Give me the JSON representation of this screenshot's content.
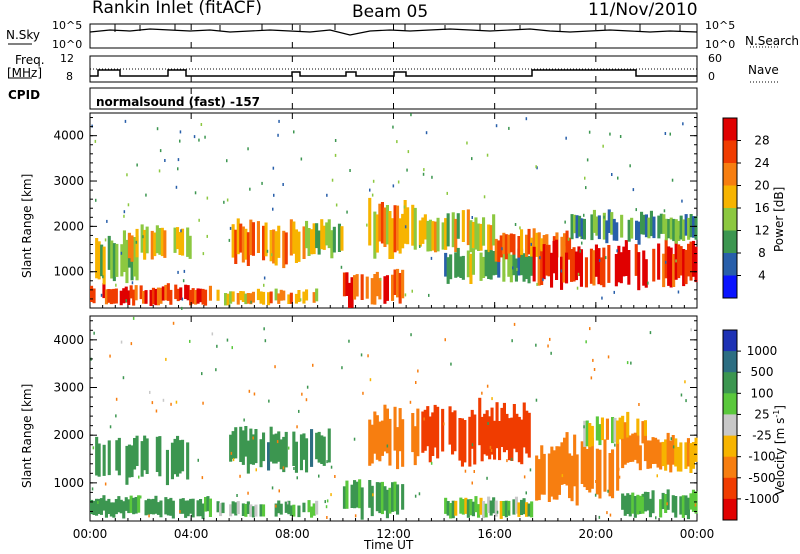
{
  "header": {
    "station": "Rankin Inlet (fitACF)",
    "beam": "Beam 05",
    "date": "11/Nov/2010"
  },
  "top_panels": {
    "nsky_label": "N.Sky",
    "nsky_ticks": [
      "10^5",
      "10^0"
    ],
    "nsearch_label": "N.Search",
    "nsearch_ticks": [
      "10^5",
      "10^0"
    ],
    "freq_label_line1": "Freq.",
    "freq_label_line2": "[MHz]",
    "freq_ticks": [
      "12",
      "8"
    ],
    "nave_label": "Nave",
    "nave_ticks": [
      "60",
      "0"
    ],
    "cpid_label": "CPID",
    "cpid_value": "normalsound (fast) -157"
  },
  "colorbars": {
    "power": {
      "label": "Power [dB]",
      "ticks": [
        "28",
        "24",
        "20",
        "16",
        "12",
        "8",
        "4"
      ],
      "colors": [
        "#e00000",
        "#f03c00",
        "#f77e10",
        "#f7b400",
        "#8cc840",
        "#3c9650",
        "#285faa",
        "#0a14ff"
      ]
    },
    "velocity": {
      "label": "Velocity [m s",
      "label_sup": "-1",
      "label_end": "]",
      "ticks": [
        "1000",
        "500",
        "100",
        "25",
        "-25",
        "-100",
        "-500",
        "-1000"
      ],
      "colors": [
        "#1e32b4",
        "#2d6e82",
        "#3c9650",
        "#5ac83c",
        "#c8c8c8",
        "#f7b400",
        "#f77e10",
        "#f03c00",
        "#e00000"
      ]
    }
  },
  "chart_data": [
    {
      "type": "heatmap",
      "title": "Power",
      "ylabel": "Slant Range [km]",
      "ylim": [
        200,
        4500
      ],
      "yticks": [
        "4000",
        "3000",
        "2000",
        "1000"
      ],
      "xlim": [
        "00:00",
        "24:00"
      ],
      "bands": [
        {
          "t0": 0.0,
          "t1": 4.8,
          "r0": 300,
          "r1": 700,
          "value": 26
        },
        {
          "t0": 0.0,
          "t1": 2.0,
          "r0": 800,
          "r1": 1800,
          "value": 14
        },
        {
          "t0": 1.5,
          "t1": 4.0,
          "r0": 1300,
          "r1": 2000,
          "value": 18
        },
        {
          "t0": 5.0,
          "t1": 9.0,
          "r0": 300,
          "r1": 600,
          "value": 20
        },
        {
          "t0": 5.5,
          "t1": 8.5,
          "r0": 1200,
          "r1": 2100,
          "value": 22
        },
        {
          "t0": 8.5,
          "t1": 10.0,
          "r0": 1400,
          "r1": 2100,
          "value": 14
        },
        {
          "t0": 10.0,
          "t1": 12.4,
          "r0": 300,
          "r1": 1000,
          "value": 26
        },
        {
          "t0": 11.0,
          "t1": 13.0,
          "r0": 1400,
          "r1": 2500,
          "value": 20
        },
        {
          "t0": 13.0,
          "t1": 16.0,
          "r0": 1500,
          "r1": 2300,
          "value": 16
        },
        {
          "t0": 14.0,
          "t1": 17.5,
          "r0": 800,
          "r1": 1500,
          "value": 12
        },
        {
          "t0": 16.0,
          "t1": 19.0,
          "r0": 1300,
          "r1": 1900,
          "value": 24
        },
        {
          "t0": 17.5,
          "t1": 24.0,
          "r0": 700,
          "r1": 1600,
          "value": 28
        },
        {
          "t0": 19.0,
          "t1": 24.0,
          "r0": 1700,
          "r1": 2300,
          "value": 10
        }
      ]
    },
    {
      "type": "heatmap",
      "title": "Velocity",
      "ylabel": "Slant Range [km]",
      "ylim": [
        200,
        4500
      ],
      "yticks": [
        "4000",
        "3000",
        "2000",
        "1000"
      ],
      "xlim": [
        "00:00",
        "24:00"
      ],
      "bands": [
        {
          "t0": 0.0,
          "t1": 4.8,
          "r0": 300,
          "r1": 700,
          "value": 200
        },
        {
          "t0": 0.0,
          "t1": 4.0,
          "r0": 1100,
          "r1": 2000,
          "value": 300
        },
        {
          "t0": 5.0,
          "t1": 9.0,
          "r0": 300,
          "r1": 600,
          "value": 100
        },
        {
          "t0": 5.5,
          "t1": 9.5,
          "r0": 1300,
          "r1": 2100,
          "value": 400
        },
        {
          "t0": 10.0,
          "t1": 12.4,
          "r0": 300,
          "r1": 1000,
          "value": 150
        },
        {
          "t0": 11.0,
          "t1": 13.0,
          "r0": 1400,
          "r1": 2500,
          "value": -300
        },
        {
          "t0": 13.0,
          "t1": 17.5,
          "r0": 1500,
          "r1": 2600,
          "value": -700
        },
        {
          "t0": 14.0,
          "t1": 17.5,
          "r0": 300,
          "r1": 700,
          "value": 60
        },
        {
          "t0": 17.5,
          "t1": 21.0,
          "r0": 700,
          "r1": 1900,
          "value": -300
        },
        {
          "t0": 19.5,
          "t1": 22.0,
          "r0": 1800,
          "r1": 2400,
          "value": 0
        },
        {
          "t0": 21.0,
          "t1": 24.0,
          "r0": 1300,
          "r1": 2000,
          "value": -150
        },
        {
          "t0": 21.0,
          "t1": 24.0,
          "r0": 300,
          "r1": 800,
          "value": 150
        }
      ]
    }
  ],
  "xaxis": {
    "label": "Time UT",
    "ticks": [
      "00:00",
      "04:00",
      "08:00",
      "12:00",
      "16:00",
      "20:00",
      "00:00"
    ]
  }
}
